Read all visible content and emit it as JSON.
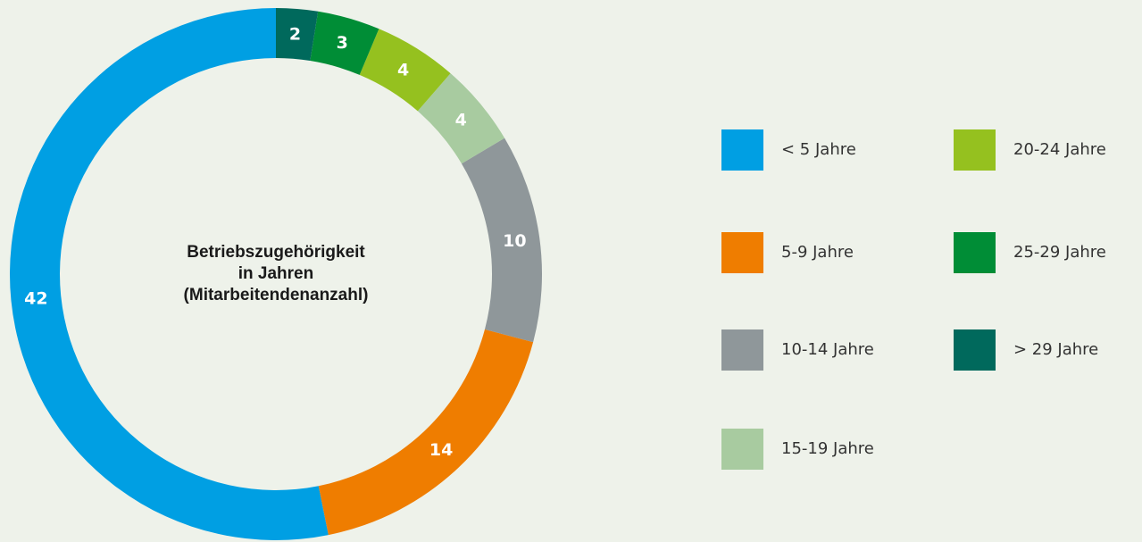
{
  "chart_data": {
    "type": "donut",
    "title_lines": [
      "Betriebszugehörigkeit",
      "in Jahren",
      "(Mitarbeitendenanzahl)"
    ],
    "categories": [
      "< 5 Jahre",
      "5-9 Jahre",
      "10-14 Jahre",
      "15-19 Jahre",
      "20-24 Jahre",
      "25-29 Jahre",
      "> 29 Jahre"
    ],
    "values": [
      42,
      14,
      10,
      4,
      4,
      3,
      2
    ],
    "colors": [
      "#009fe3",
      "#ef7d00",
      "#8f979a",
      "#a8cba0",
      "#95c11f",
      "#008d36",
      "#00695c"
    ],
    "legend": "right"
  }
}
